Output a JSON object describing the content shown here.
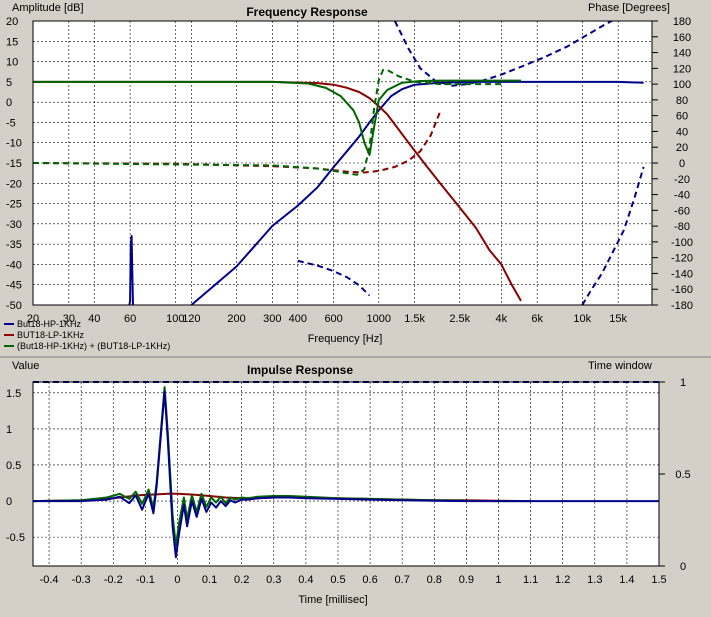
{
  "chart_data": [
    {
      "type": "line",
      "title": "Frequency Response",
      "ylabel": "Amplitude [dB]",
      "y2label": "Phase [Degrees]",
      "xlabel": "Frequency [Hz]",
      "xscale": "log",
      "xlim": [
        20,
        22000
      ],
      "ylim": [
        -50,
        20
      ],
      "y2lim": [
        -180,
        180
      ],
      "grid": true,
      "legend_position": "bottom-left",
      "x_ticks": [
        20,
        30,
        40,
        60,
        100,
        120,
        200,
        300,
        400,
        600,
        1000,
        1500,
        2500,
        4000,
        6000,
        10000,
        15000
      ],
      "x_tick_labels": [
        "20",
        "30",
        "40",
        "60",
        "100",
        "120",
        "200",
        "300",
        "400",
        "600",
        "1000",
        "1.5k",
        "2.5k",
        "4k",
        "6k",
        "10k",
        "15k"
      ],
      "y_ticks": [
        20,
        15,
        10,
        5,
        0,
        -5,
        -10,
        -15,
        -20,
        -25,
        -30,
        -35,
        -40,
        -45,
        -50
      ],
      "y_tick_labels": [
        "20",
        "15",
        "10",
        "5",
        "0",
        "-5",
        "-10",
        "-15",
        "-20",
        "-25",
        "-30",
        "-35",
        "-40",
        "-45",
        "-50"
      ],
      "y2_ticks": [
        180,
        160,
        140,
        120,
        100,
        80,
        60,
        40,
        20,
        0,
        -20,
        -40,
        -60,
        -80,
        -100,
        -120,
        -140,
        -160,
        -180
      ],
      "y2_tick_labels": [
        "180",
        "160",
        "140",
        "120",
        "100",
        "80",
        "60",
        "40",
        "20",
        "0",
        "-20",
        "-40",
        "-60",
        "-80",
        "-100",
        "-120",
        "-140",
        "-160",
        "-180"
      ],
      "series": [
        {
          "name": "But18-HP-1KHz",
          "color": "#00008b",
          "kind": "amplitude",
          "style": "solid",
          "x": [
            120,
            200,
            300,
            400,
            500,
            600,
            700,
            800,
            900,
            1000,
            1150,
            1300,
            1500,
            2000,
            3000,
            6000,
            10000,
            15000,
            20000
          ],
          "y": [
            -50,
            -40.5,
            -30.5,
            -25.5,
            -21,
            -16,
            -12,
            -8.5,
            -5,
            -2,
            1.5,
            3.2,
            4.3,
            4.8,
            5,
            5,
            5,
            5,
            4.8
          ]
        },
        {
          "name": "But18-HP-1KHz",
          "color": "#00008b",
          "kind": "spike",
          "style": "solid",
          "x": [
            59.5,
            60,
            60.5,
            61,
            61.5,
            62
          ],
          "y": [
            -50,
            -49,
            -35,
            -33,
            -42,
            -50
          ]
        },
        {
          "name": "But18-HP-1KHz",
          "color": "#00008b",
          "kind": "phase",
          "style": "dashed",
          "x": [
            1200,
            1400,
            1600,
            1900,
            2300,
            2700,
            3200,
            4000,
            5000,
            6500,
            8500,
            10500,
            13000,
            16000
          ],
          "y2": [
            180,
            145,
            120,
            104,
            98,
            100,
            104,
            112,
            122,
            134,
            148,
            162,
            176,
            188
          ]
        },
        {
          "name": "But18-HP-1KHz",
          "color": "#00008b",
          "kind": "phase",
          "style": "dashed",
          "x": [
            400,
            500,
            600,
            700,
            800,
            900
          ],
          "y2": [
            -124,
            -130,
            -137,
            -145,
            -155,
            -168
          ]
        },
        {
          "name": "But18-HP-1KHz",
          "color": "#00008b",
          "kind": "phase",
          "style": "dashed",
          "x": [
            10000,
            11000,
            12500,
            14000,
            16000,
            18000,
            20000
          ],
          "y2": [
            -180,
            -162,
            -140,
            -115,
            -85,
            -45,
            -5
          ]
        },
        {
          "name": "BUT18-LP-1KHz",
          "color": "#8b0000",
          "kind": "amplitude",
          "style": "solid",
          "x": [
            20,
            100,
            300,
            500,
            600,
            700,
            800,
            900,
            1000,
            1100,
            1200,
            1400,
            1700,
            2000,
            2500,
            3000,
            3500,
            4000,
            4500,
            5000
          ],
          "y": [
            5,
            5,
            5,
            4.7,
            4.3,
            3.5,
            2.5,
            1,
            -1,
            -3,
            -5.5,
            -10,
            -15.5,
            -20,
            -26,
            -31,
            -36.5,
            -40,
            -45,
            -49
          ]
        },
        {
          "name": "BUT18-LP-1KHz",
          "color": "#8b0000",
          "kind": "phase",
          "style": "dashed",
          "x": [
            20,
            100,
            300,
            500,
            700,
            850,
            1000,
            1200,
            1400,
            1600,
            1800,
            2000
          ],
          "y2": [
            0,
            -1,
            -4,
            -7,
            -11,
            -12,
            -10,
            -5,
            3,
            15,
            35,
            65
          ]
        },
        {
          "name": "(But18-HP-1KHz) + (BUT18-LP-1KHz)",
          "color": "#006400",
          "kind": "amplitude",
          "style": "solid",
          "x": [
            20,
            300,
            450,
            550,
            650,
            750,
            800,
            850,
            900,
            950,
            1000,
            1100,
            1300,
            1600,
            2000,
            3000,
            5000
          ],
          "y": [
            5,
            5,
            4.6,
            3.5,
            1.5,
            -2,
            -5,
            -10,
            -13,
            -6,
            0.5,
            3,
            4.8,
            5.2,
            5.3,
            5.3,
            5.3
          ]
        },
        {
          "name": "(But18-HP-1KHz) + (BUT18-LP-1KHz)",
          "color": "#006400",
          "kind": "phase",
          "style": "dashed",
          "x": [
            20,
            300,
            500,
            600,
            700,
            780,
            850,
            900,
            950,
            1000,
            1050,
            1100,
            1250,
            1500,
            2000,
            3000,
            4000
          ],
          "y2": [
            0,
            -3,
            -7,
            -10,
            -13,
            -15,
            -8,
            20,
            70,
            105,
            118,
            118,
            110,
            103,
            100,
            100,
            100
          ]
        }
      ]
    },
    {
      "type": "line",
      "title": "Impulse Response",
      "ylabel": "Value",
      "y2label": "Time window",
      "xlabel": "Time [millisec]",
      "xlim": [
        -0.45,
        1.5
      ],
      "ylim": [
        -0.9,
        1.65
      ],
      "y2lim": [
        0,
        1
      ],
      "grid": true,
      "x_ticks": [
        -0.4,
        -0.3,
        -0.2,
        -0.1,
        0,
        0.1,
        0.2,
        0.3,
        0.4,
        0.5,
        0.6,
        0.7,
        0.8,
        0.9,
        1,
        1.1,
        1.2,
        1.3,
        1.4,
        1.5
      ],
      "x_tick_labels": [
        "-0.4",
        "-0.3",
        "-0.2",
        "-0.1",
        "0",
        "0.1",
        "0.2",
        "0.3",
        "0.4",
        "0.5",
        "0.6",
        "0.7",
        "0.8",
        "0.9",
        "1",
        "1.1",
        "1.2",
        "1.3",
        "1.4",
        "1.5"
      ],
      "y_ticks": [
        1.5,
        1,
        0.5,
        0,
        -0.5
      ],
      "y_tick_labels": [
        "1.5",
        "1",
        "0.5",
        "0",
        "-0.5"
      ],
      "y2_ticks": [
        1,
        0.5,
        0
      ],
      "y2_tick_labels": [
        "1",
        "0.5",
        "0"
      ],
      "series": [
        {
          "name": "BUT18-LP-1KHz",
          "color": "#8b0000",
          "style": "solid",
          "x": [
            -0.45,
            -0.3,
            -0.2,
            -0.12,
            -0.08,
            -0.03,
            0,
            0.05,
            0.1,
            0.15,
            0.2,
            0.25,
            0.3,
            0.4,
            0.5,
            0.6,
            0.7,
            0.8,
            0.9,
            1,
            1.1
          ],
          "y": [
            0,
            0.01,
            0.04,
            0.08,
            0.09,
            0.1,
            0.1,
            0.09,
            0.07,
            0.05,
            0.04,
            0.04,
            0.05,
            0.05,
            0.04,
            0.03,
            0.02,
            0.01,
            0.01,
            0.005,
            0
          ]
        },
        {
          "name": "(But18-HP-1KHz) + (BUT18-LP-1KHz)",
          "color": "#006400",
          "style": "solid",
          "x": [
            -0.45,
            -0.3,
            -0.22,
            -0.18,
            -0.15,
            -0.13,
            -0.11,
            -0.09,
            -0.075,
            -0.065,
            -0.05,
            -0.04,
            -0.03,
            -0.015,
            -0.005,
            0.005,
            0.02,
            0.03,
            0.045,
            0.06,
            0.075,
            0.09,
            0.105,
            0.12,
            0.135,
            0.15,
            0.165,
            0.18,
            0.2,
            0.22,
            0.25,
            0.3,
            0.35,
            0.4,
            0.5,
            0.6,
            0.7,
            0.8,
            0.9,
            1,
            1.1
          ],
          "y": [
            0,
            0.01,
            0.05,
            0.1,
            0.03,
            0.13,
            -0.04,
            0.16,
            -0.1,
            0.25,
            1.05,
            1.58,
            0.95,
            -0.2,
            -0.62,
            -0.3,
            0.05,
            -0.25,
            0.08,
            -0.15,
            0.1,
            -0.08,
            0.05,
            -0.02,
            0.06,
            -0.03,
            0.05,
            0.02,
            0.05,
            0.04,
            0.06,
            0.07,
            0.07,
            0.06,
            0.04,
            0.03,
            0.02,
            0.01,
            0.005,
            0,
            0
          ]
        },
        {
          "name": "But18-HP-1KHz",
          "color": "#00008b",
          "style": "solid",
          "x": [
            -0.45,
            -0.3,
            -0.22,
            -0.18,
            -0.15,
            -0.13,
            -0.11,
            -0.09,
            -0.075,
            -0.065,
            -0.05,
            -0.04,
            -0.03,
            -0.015,
            -0.005,
            0.005,
            0.02,
            0.03,
            0.045,
            0.06,
            0.075,
            0.09,
            0.105,
            0.12,
            0.135,
            0.15,
            0.165,
            0.18,
            0.2,
            0.22,
            0.25,
            0.3,
            0.35,
            0.4,
            0.5,
            0.6,
            0.7,
            0.8,
            0.9,
            1,
            1.5
          ],
          "y": [
            0,
            0,
            0.02,
            0.06,
            -0.03,
            0.08,
            -0.12,
            0.1,
            -0.17,
            0.2,
            1.0,
            1.52,
            0.85,
            -0.35,
            -0.78,
            -0.45,
            -0.05,
            -0.35,
            0,
            -0.22,
            0.03,
            -0.15,
            -0.02,
            -0.09,
            0,
            -0.07,
            0.01,
            -0.02,
            0.02,
            0.02,
            0.04,
            0.05,
            0.05,
            0.04,
            0.03,
            0.02,
            0.01,
            0.005,
            0,
            0,
            0
          ]
        },
        {
          "name": "Time window",
          "color": "#00008b",
          "style": "dashed",
          "axis": "y2",
          "x": [
            -0.45,
            1.5
          ],
          "y2": [
            1,
            1
          ]
        }
      ]
    }
  ],
  "legend": [
    {
      "label": "But18-HP-1KHz",
      "color": "#00008b"
    },
    {
      "label": "BUT18-LP-1KHz",
      "color": "#8b0000"
    },
    {
      "label": "(But18-HP-1KHz) + (BUT18-LP-1KHz)",
      "color": "#006400"
    }
  ]
}
